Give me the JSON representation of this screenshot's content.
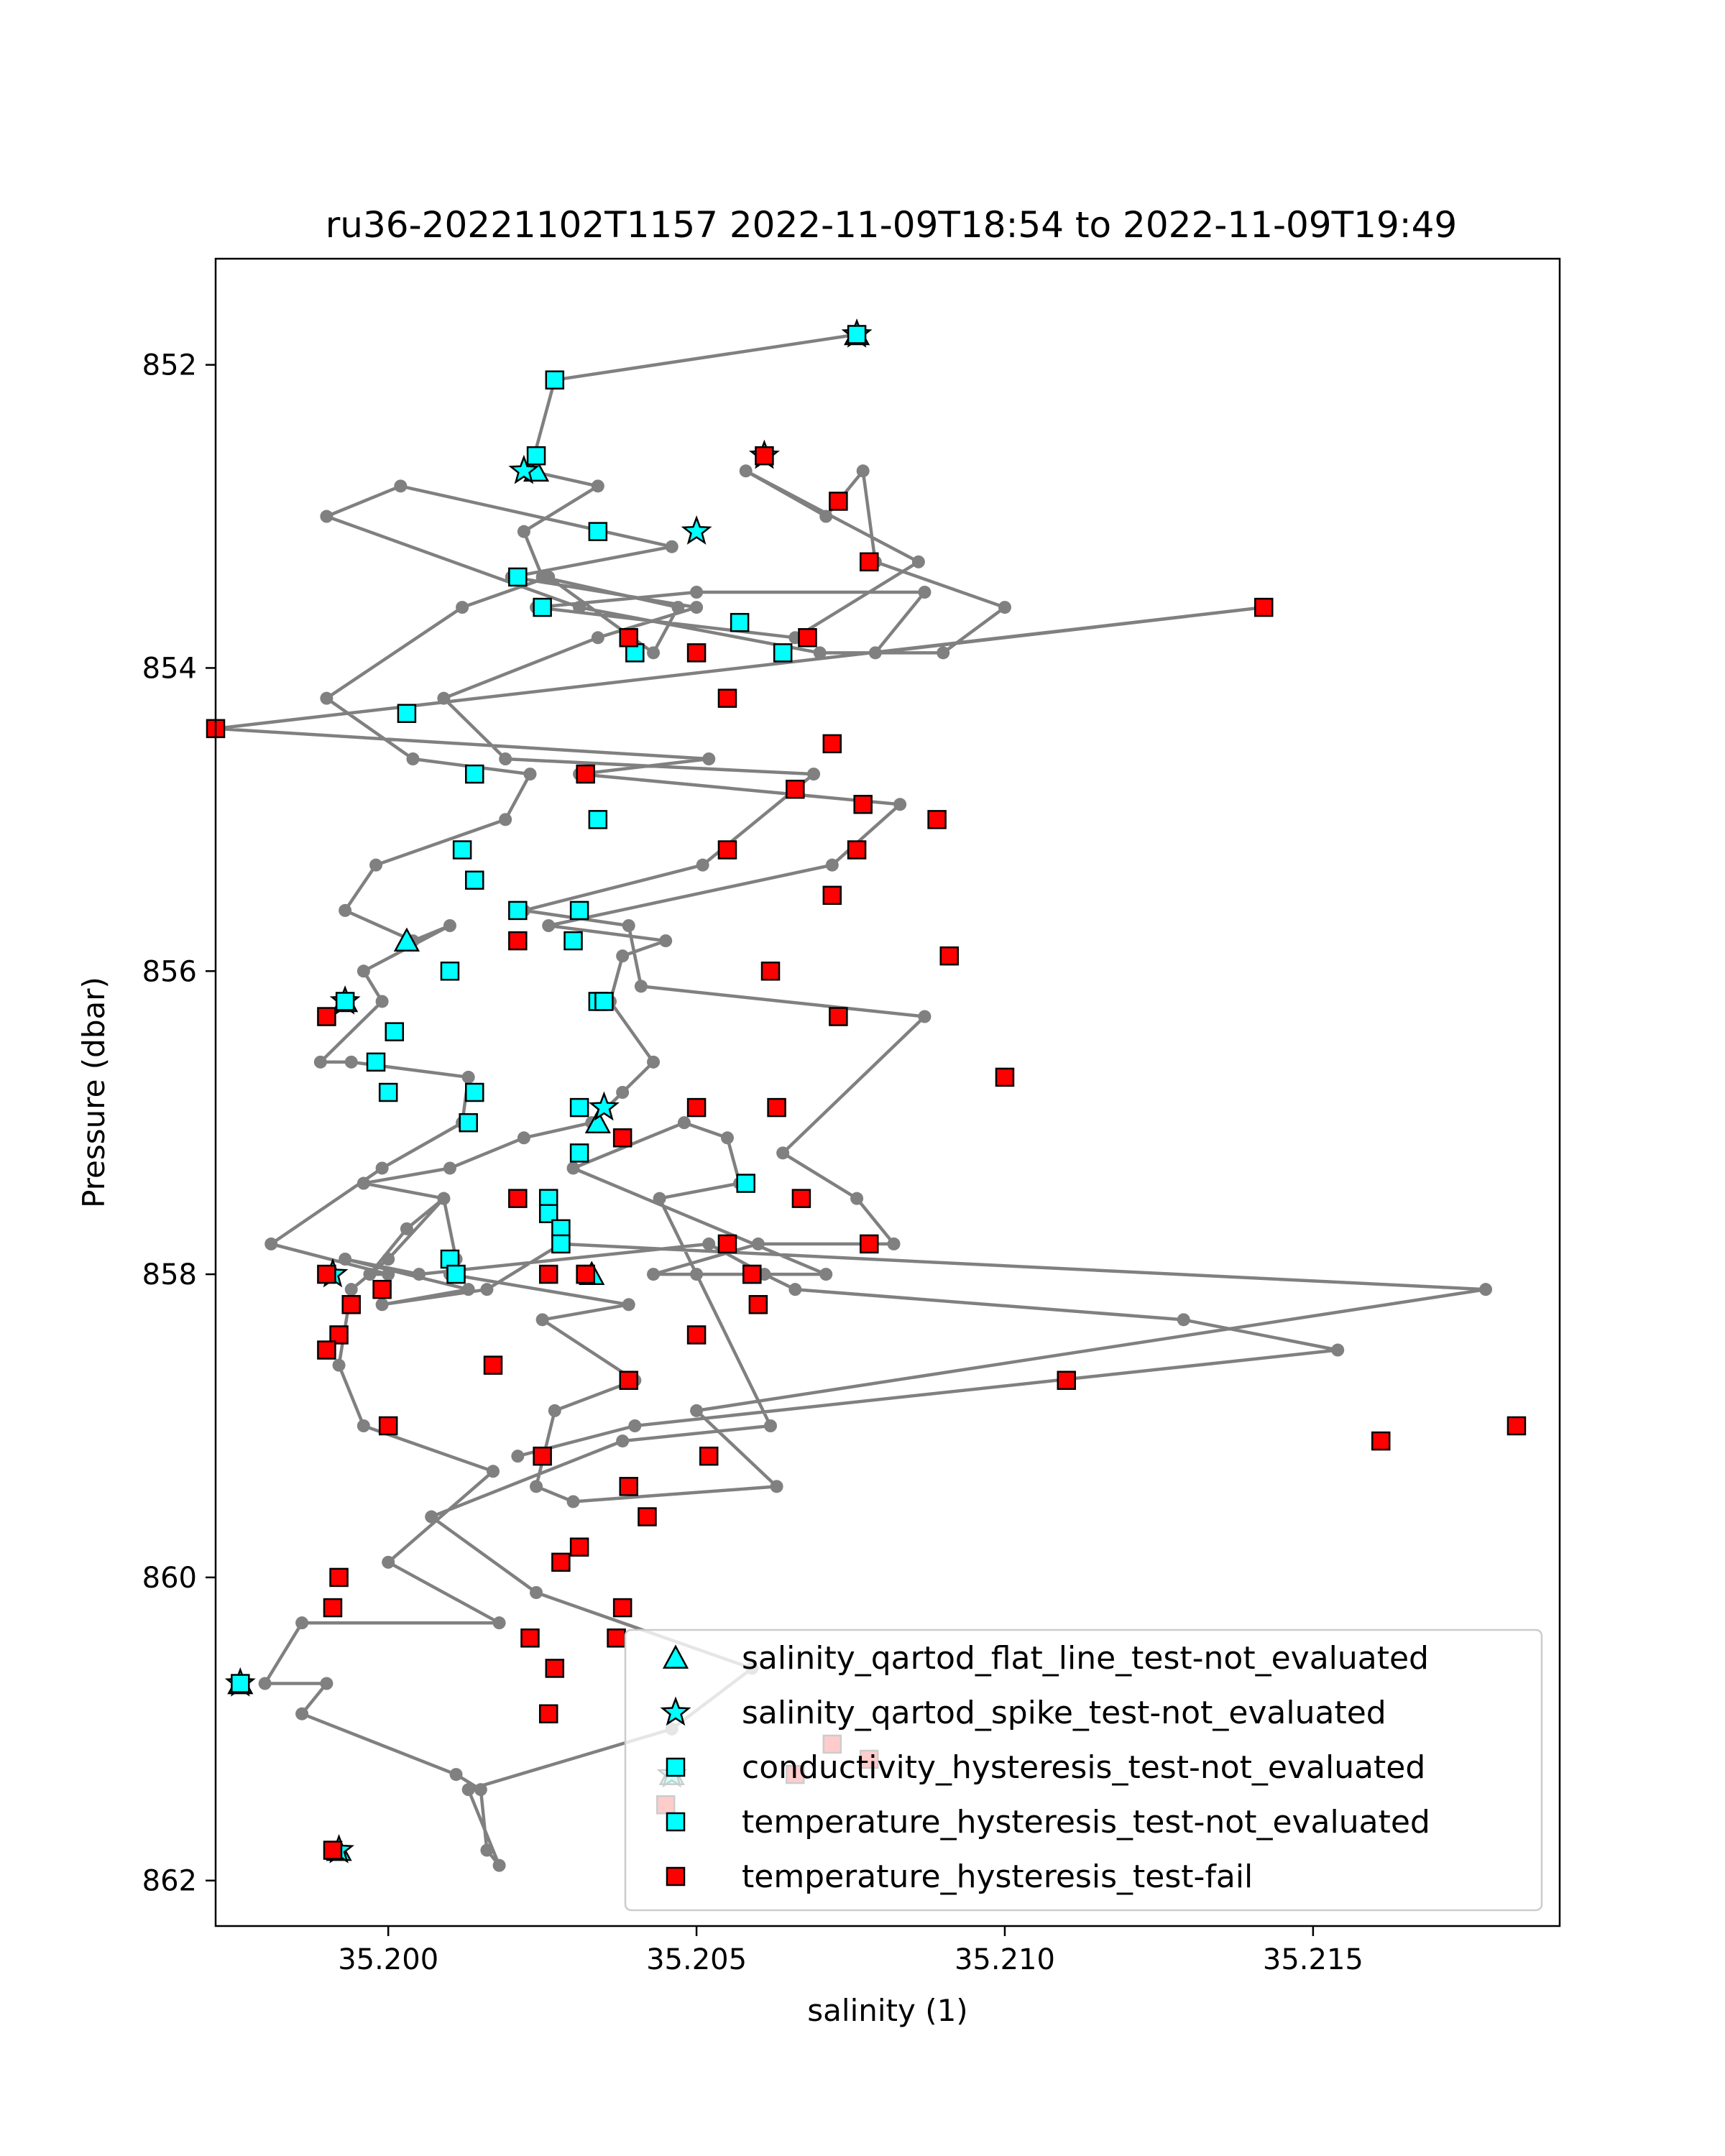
{
  "chart_data": {
    "type": "scatter",
    "title": "ru36-20221102T1157 2022-11-09T18:54 to 2022-11-09T19:49",
    "xlabel": "salinity (1)",
    "ylabel": "Pressure (dbar)",
    "xlim": [
      35.1972,
      35.219
    ],
    "ylim": [
      862.3,
      851.3
    ],
    "y_inverted": true,
    "x_ticks": [
      35.2,
      35.205,
      35.21,
      35.215
    ],
    "x_tick_labels": [
      "35.200",
      "35.205",
      "35.210",
      "35.215"
    ],
    "y_ticks": [
      852,
      854,
      856,
      858,
      860,
      862
    ],
    "y_tick_labels": [
      "852",
      "854",
      "856",
      "858",
      "860",
      "862"
    ],
    "grid": false,
    "legend_position": "lower-right",
    "colors": {
      "profile_line": "#808080",
      "not_evaluated": "#00ffff",
      "fail": "#ff0000",
      "marker_edge": "#000000"
    },
    "profile": {
      "x": [
        35.2076,
        35.2027,
        35.2023,
        35.2034,
        35.2022,
        35.2025,
        35.2047,
        35.2043,
        35.2026,
        35.2012,
        35.199,
        35.2004,
        35.2023,
        35.2019,
        35.1998,
        35.1993,
        35.2004,
        35.201,
        35.1996,
        35.1999,
        35.1989,
        35.1994,
        35.2013,
        35.2012,
        35.1999,
        35.1981,
        35.2,
        35.1997,
        35.2003,
        35.2009,
        35.2,
        35.1994,
        35.1992,
        35.1996,
        35.2017,
        35.2,
        35.2018,
        35.1986,
        35.198,
        35.199,
        35.1986,
        35.2011,
        35.2015,
        35.2016,
        35.2018,
        35.2013,
        35.2046,
        35.2059,
        35.2024,
        35.2007,
        35.2038,
        35.2062,
        35.205,
        35.2044,
        35.2057,
        35.2055,
        35.2048,
        35.203,
        35.2071,
        35.2043,
        35.206,
        35.2082,
        35.2076,
        35.2064,
        35.2087,
        35.2041,
        35.2039,
        35.2022,
        35.2051,
        35.2069,
        35.2019,
        35.2009,
        35.2034,
        35.205,
        35.202,
        35.2046,
        35.2002,
        35.199,
        35.2031,
        35.207,
        35.209,
        35.21,
        35.2079,
        35.2077,
        35.2071,
        35.2058,
        35.2086,
        35.2066,
        35.2024,
        35.205,
        35.2087,
        35.2079,
        35.2142,
        35.1972,
        35.2052,
        35.2031,
        35.2083,
        35.2072,
        35.2026,
        35.2045,
        35.2038,
        35.2036,
        35.2043,
        35.2038,
        35.2033,
        35.2022,
        35.201,
        35.1996,
        35.2009,
        35.2011,
        35.201,
        35.2039,
        35.2025,
        35.204,
        35.2027,
        35.2024,
        35.203,
        35.2063,
        35.205,
        35.2178,
        35.2028,
        35.2016,
        35.1999,
        35.2013,
        35.1993,
        35.2005,
        35.2052,
        35.2061,
        35.2066,
        35.2129,
        35.2154,
        35.204,
        35.2021
      ],
      "y": [
        851.8,
        852.1,
        852.7,
        852.8,
        853.1,
        853.4,
        853.6,
        853.9,
        853.4,
        853.6,
        854.2,
        854.6,
        854.7,
        855.0,
        855.3,
        855.6,
        855.8,
        855.7,
        856.0,
        856.2,
        856.6,
        856.6,
        856.7,
        857.0,
        857.3,
        857.8,
        858.0,
        858.0,
        857.7,
        857.5,
        857.9,
        858.1,
        858.6,
        859.0,
        859.3,
        859.9,
        860.3,
        860.3,
        860.7,
        860.7,
        860.9,
        861.3,
        861.4,
        861.8,
        861.9,
        861.4,
        861.0,
        860.6,
        860.1,
        859.6,
        859.1,
        859.0,
        858.0,
        857.5,
        857.4,
        857.1,
        857.0,
        857.3,
        858.0,
        858.0,
        857.8,
        857.8,
        857.5,
        857.2,
        856.3,
        856.1,
        855.7,
        855.6,
        855.3,
        854.7,
        854.6,
        854.2,
        853.8,
        853.6,
        853.4,
        853.2,
        852.8,
        853.0,
        853.6,
        853.9,
        853.9,
        853.6,
        853.3,
        852.7,
        853.0,
        852.7,
        853.3,
        853.8,
        853.6,
        853.5,
        853.5,
        853.9,
        853.6,
        854.4,
        854.6,
        854.7,
        854.9,
        855.3,
        855.7,
        855.8,
        855.9,
        856.2,
        856.6,
        856.8,
        857.0,
        857.1,
        857.3,
        857.4,
        857.5,
        857.9,
        858.0,
        858.2,
        858.3,
        858.7,
        858.9,
        859.4,
        859.5,
        859.4,
        858.9,
        858.1,
        857.8,
        858.1,
        858.2,
        858.1,
        857.9,
        858.0,
        857.8,
        858.0,
        858.1,
        858.3,
        858.5,
        859.0,
        859.2
      ]
    },
    "series": [
      {
        "name": "salinity_qartod_flat_line_test-not_evaluated",
        "marker": "triangle",
        "color": "#00ffff",
        "x": [
          35.2076,
          35.2024,
          35.2003,
          35.1993,
          35.2034,
          35.2033,
          35.1976,
          35.1992,
          35.2046
        ],
        "y": [
          851.8,
          852.7,
          855.8,
          856.2,
          857.0,
          858.0,
          860.7,
          861.8,
          861.3
        ]
      },
      {
        "name": "salinity_qartod_spike_test-not_evaluated",
        "marker": "star",
        "color": "#00ffff",
        "x": [
          35.2076,
          35.2022,
          35.2035,
          35.1993,
          35.1976,
          35.2061,
          35.205,
          35.1992,
          35.2046,
          35.1991
        ],
        "y": [
          851.8,
          852.7,
          856.9,
          856.2,
          860.7,
          852.6,
          853.1,
          861.8,
          861.3,
          858.0
        ]
      },
      {
        "name": "conductivity_hysteresis_test-not_evaluated",
        "marker": "square",
        "color": "#00ffff",
        "x": [
          35.2027,
          35.2024,
          35.2034,
          35.2021,
          35.2025,
          35.2057,
          35.204,
          35.2064,
          35.2003,
          35.2014,
          35.2034,
          35.2012,
          35.2014,
          35.2031,
          35.203,
          35.2034,
          35.201,
          35.2021,
          35.2035,
          35.2001,
          35.1998,
          35.2,
          35.2013,
          35.2014,
          35.2031,
          35.2031,
          35.2058,
          35.2026,
          35.2026,
          35.2028,
          35.2028,
          35.201,
          35.2011,
          35.2059,
          35.2032
        ],
        "y": [
          852.1,
          852.6,
          853.1,
          853.4,
          853.6,
          853.7,
          853.9,
          853.9,
          854.3,
          854.7,
          855.0,
          855.2,
          855.4,
          855.6,
          855.8,
          856.2,
          856.0,
          855.6,
          856.2,
          856.4,
          856.6,
          856.8,
          857.0,
          856.8,
          856.9,
          857.2,
          857.4,
          857.5,
          857.6,
          857.7,
          857.8,
          857.9,
          858.0,
          858.0,
          858.0
        ]
      },
      {
        "name": "temperature_hysteresis_test-not_evaluated",
        "marker": "square",
        "color": "#00ffff",
        "x": [
          35.2076,
          35.1993,
          35.1976
        ],
        "y": [
          851.8,
          856.2,
          860.7
        ]
      },
      {
        "name": "temperature_hysteresis_test-fail",
        "marker": "square",
        "color": "#ff0000",
        "x": [
          35.2061,
          35.2073,
          35.2078,
          35.2142,
          35.2068,
          35.2039,
          35.205,
          35.2055,
          35.1972,
          35.2072,
          35.2032,
          35.2066,
          35.2077,
          35.2089,
          35.2076,
          35.2055,
          35.2072,
          35.2021,
          35.2091,
          35.2062,
          35.199,
          35.2073,
          35.21,
          35.205,
          35.2063,
          35.2038,
          35.2021,
          35.2067,
          35.2055,
          35.2078,
          35.1999,
          35.199,
          35.2026,
          35.2032,
          35.206,
          35.2059,
          35.1994,
          35.1992,
          35.199,
          35.205,
          35.2039,
          35.2017,
          35.2,
          35.211,
          35.2025,
          35.2052,
          35.2161,
          35.2183,
          35.2039,
          35.2042,
          35.2031,
          35.2028,
          35.1992,
          35.2038,
          35.1991,
          35.2023,
          35.2037,
          35.2027,
          35.2026,
          35.2072,
          35.2078,
          35.2045,
          35.2066,
          35.1991
        ],
        "y": [
          852.6,
          852.9,
          853.3,
          853.6,
          853.8,
          853.8,
          853.9,
          854.2,
          854.4,
          854.5,
          854.7,
          854.8,
          854.9,
          855.0,
          855.2,
          855.2,
          855.5,
          855.8,
          855.9,
          856.0,
          856.3,
          856.3,
          856.7,
          856.9,
          856.9,
          857.1,
          857.5,
          857.5,
          857.8,
          857.8,
          858.1,
          858.0,
          858.0,
          858.0,
          858.2,
          858.0,
          858.2,
          858.4,
          858.5,
          858.4,
          858.7,
          858.6,
          859.0,
          858.7,
          859.2,
          859.2,
          859.1,
          859.0,
          859.4,
          859.6,
          859.8,
          859.9,
          860.0,
          860.2,
          860.2,
          860.4,
          860.4,
          860.6,
          860.9,
          861.1,
          861.2,
          861.5,
          861.3,
          861.8
        ]
      }
    ]
  }
}
